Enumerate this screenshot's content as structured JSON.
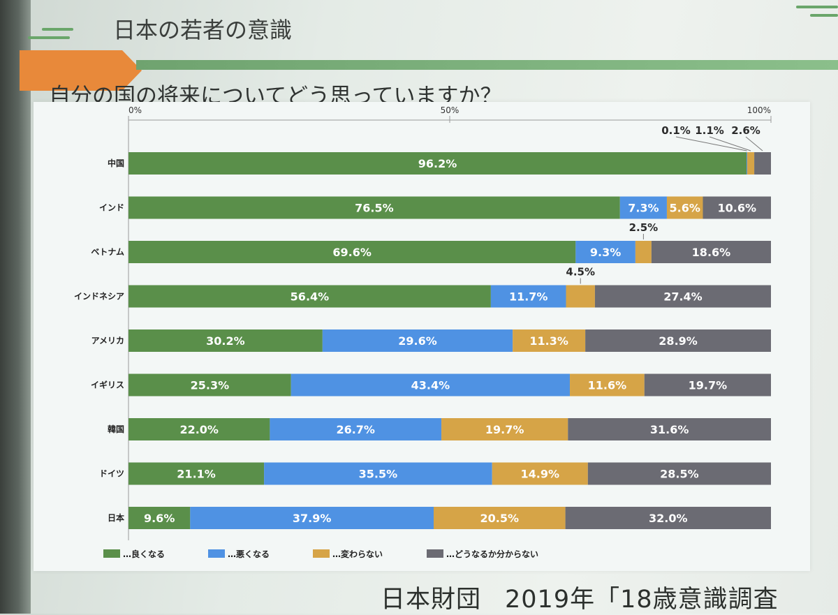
{
  "slide": {
    "title": "日本の若者の意識",
    "question": "自分の国の将来についてどう思っていますか？",
    "footer_org": "日本財団",
    "footer_survey": "2019年「18歳意識調査"
  },
  "colors": {
    "better": "#5a8f4a",
    "worse": "#4f92e3",
    "same": "#d6a447",
    "unknown": "#6b6b73",
    "accent_orange": "#e8893a"
  },
  "chart_data": {
    "type": "bar",
    "orientation": "horizontal-stacked-100",
    "axis_ticks": [
      "0%",
      "50%",
      "100%"
    ],
    "xlim": [
      0,
      100
    ],
    "categories": [
      "中国",
      "インド",
      "ベトナム",
      "インドネシア",
      "アメリカ",
      "イギリス",
      "韓国",
      "ドイツ",
      "日本"
    ],
    "series": [
      {
        "name": "良くなる",
        "values": [
          96.2,
          76.5,
          69.6,
          56.4,
          30.2,
          25.3,
          22.0,
          21.1,
          9.6
        ]
      },
      {
        "name": "悪くなる",
        "values": [
          0.1,
          7.3,
          9.3,
          11.7,
          29.6,
          43.4,
          26.7,
          35.5,
          37.9
        ]
      },
      {
        "name": "変わらない",
        "values": [
          1.1,
          5.6,
          2.5,
          4.5,
          11.3,
          11.6,
          19.7,
          14.9,
          20.5
        ]
      },
      {
        "name": "どうなるか分からない",
        "values": [
          2.6,
          10.6,
          18.6,
          27.4,
          28.9,
          19.7,
          31.6,
          28.5,
          32.0
        ]
      }
    ],
    "legend_position": "bottom-left"
  }
}
